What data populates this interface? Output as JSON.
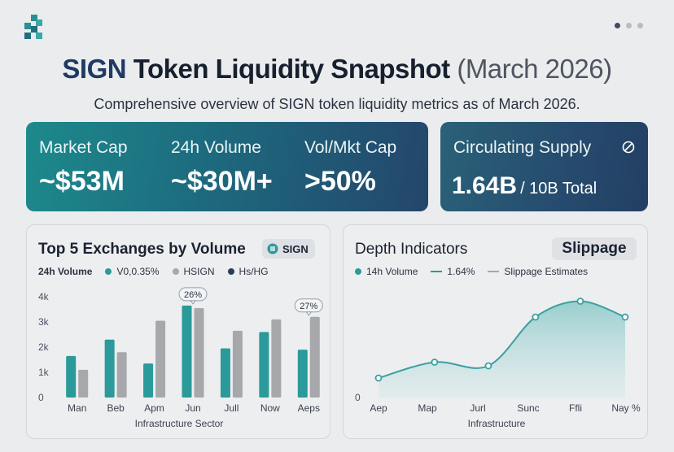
{
  "header": {
    "title_brand": "SIGN",
    "title_main": "Token Liquidity Snapshot",
    "title_date": "(March 2026)",
    "subtitle": "Comprehensive overview of SIGN token liquidity metrics as of March 2026."
  },
  "pagination": {
    "pages": 3,
    "active": 0
  },
  "metrics": [
    {
      "label": "Market Cap",
      "value": "~$53M"
    },
    {
      "label": "24h Volume",
      "value": "~$30M+"
    },
    {
      "label": "Vol/Mkt Cap",
      "value": ">50%"
    }
  ],
  "supply": {
    "label": "Circulating Supply",
    "value": "1.64B",
    "total": "/ 10B Total"
  },
  "exchanges": {
    "title": "Top 5 Exchanges by Volume",
    "badge": "SIGN",
    "legend_title": "24h Volume",
    "legend": [
      "V0,0.35%",
      "HSIGN",
      "Hs/HG"
    ]
  },
  "depth": {
    "title": "Depth Indicators",
    "badge": "Slippage",
    "legend": [
      "14h Volume",
      "1.64%",
      "Slippage Estimates"
    ]
  },
  "colors": {
    "teal": "#2b9a9a",
    "gray": "#a6a8ab",
    "navy": "#2b3c5c",
    "area_line": "#3d9fa0"
  },
  "chart_data": [
    {
      "type": "bar",
      "title": "Top 5 Exchanges by Volume",
      "categories": [
        "Man",
        "Beb",
        "Apm",
        "Jun",
        "Jull",
        "Now",
        "Aeps"
      ],
      "series": [
        {
          "name": "V0,0.35%",
          "values": [
            1.65,
            2.3,
            1.35,
            3.65,
            1.95,
            2.6,
            1.9
          ]
        },
        {
          "name": "HSIGN",
          "values": [
            1.1,
            1.8,
            3.05,
            3.55,
            2.65,
            3.1,
            3.2
          ]
        }
      ],
      "annotations": [
        {
          "category": "Jun",
          "text": "26%"
        },
        {
          "category": "Aeps",
          "text": "27%"
        }
      ],
      "yticks": [
        "0",
        "1k",
        "2k",
        "3k",
        "4k"
      ],
      "ylim": [
        0,
        4
      ],
      "xlabel": "Infrastructure Sector",
      "ylabel": ""
    },
    {
      "type": "area",
      "title": "Depth Indicators",
      "categories": [
        "Aep",
        "Map",
        "Jurl",
        "Sunc",
        "Ffli",
        "Nay %"
      ],
      "x": [
        0,
        1,
        2,
        3,
        4,
        5
      ],
      "values": [
        0.8,
        1.45,
        1.3,
        3.3,
        3.95,
        3.3
      ],
      "xpoints": [
        0,
        1.25,
        2.45,
        3.5,
        4.5,
        5.5
      ],
      "ylim": [
        0,
        5
      ],
      "yticks": [
        "0"
      ],
      "xlabel": "Infrastructure",
      "ylabel": ""
    }
  ]
}
